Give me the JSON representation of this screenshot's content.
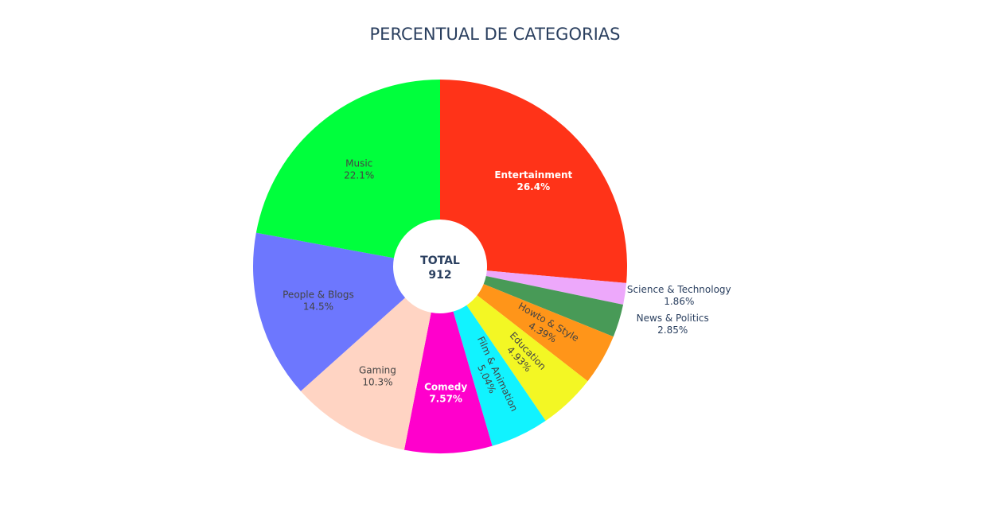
{
  "chart_data": {
    "type": "pie",
    "title": "PERCENTUAL DE CATEGORIAS",
    "hole": true,
    "center": {
      "line1": "TOTAL",
      "line2": "912"
    },
    "sort": "descending",
    "direction": "clockwise",
    "slices": [
      {
        "label": "Entertainment",
        "percent_text": "26.4%",
        "value": 26.4,
        "color": "#ff3318",
        "text_color": "#ffffff",
        "bold": true,
        "placement": "inside",
        "rotate": false
      },
      {
        "label": "Science & Technology",
        "percent_text": "1.86%",
        "value": 1.86,
        "color": "#eda8fb",
        "text_color": "#2a3f5f",
        "bold": false,
        "placement": "outside",
        "rotate": false
      },
      {
        "label": "News & Politics",
        "percent_text": "2.85%",
        "value": 2.85,
        "color": "#489a57",
        "text_color": "#2a3f5f",
        "bold": false,
        "placement": "outside",
        "rotate": false
      },
      {
        "label": "Howto & Style",
        "percent_text": "4.39%",
        "value": 4.39,
        "color": "#ff9519",
        "text_color": "#444444",
        "bold": false,
        "placement": "inside",
        "rotate": true
      },
      {
        "label": "Education",
        "percent_text": "4.93%",
        "value": 4.93,
        "color": "#f3f724",
        "text_color": "#444444",
        "bold": false,
        "placement": "inside",
        "rotate": true
      },
      {
        "label": "Film & Animation",
        "percent_text": "5.04%",
        "value": 5.04,
        "color": "#11f3ff",
        "text_color": "#444444",
        "bold": false,
        "placement": "inside",
        "rotate": true
      },
      {
        "label": "Comedy",
        "percent_text": "7.57%",
        "value": 7.57,
        "color": "#ff00cc",
        "text_color": "#ffffff",
        "bold": true,
        "placement": "inside",
        "rotate": false
      },
      {
        "label": "Gaming",
        "percent_text": "10.3%",
        "value": 10.3,
        "color": "#ffd4c3",
        "text_color": "#444444",
        "bold": false,
        "placement": "inside",
        "rotate": false
      },
      {
        "label": "People & Blogs",
        "percent_text": "14.5%",
        "value": 14.5,
        "color": "#6d77fe",
        "text_color": "#444444",
        "bold": false,
        "placement": "inside",
        "rotate": false
      },
      {
        "label": "Music",
        "percent_text": "22.1%",
        "value": 22.1,
        "color": "#00ff3c",
        "text_color": "#444444",
        "bold": false,
        "placement": "inside",
        "rotate": false
      }
    ]
  }
}
